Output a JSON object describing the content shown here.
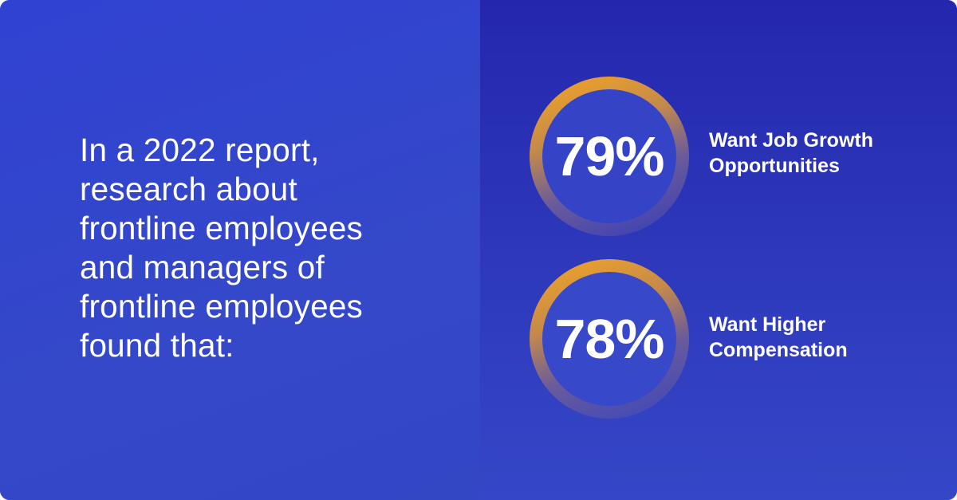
{
  "intro": {
    "text": "In a 2022 report,\nresearch about\nfrontline employees\nand managers of\nfrontline employees\nfound that:"
  },
  "stats": [
    {
      "percent": "79%",
      "label": "Want Job Growth\nOpportunities",
      "value": 79
    },
    {
      "percent": "78%",
      "label": "Want Higher\nCompensation",
      "value": 78
    }
  ],
  "colors": {
    "background": "#3346d4",
    "right_panel": "#2427ad",
    "ring_accent": "#f6a623",
    "text": "#ffffff"
  }
}
